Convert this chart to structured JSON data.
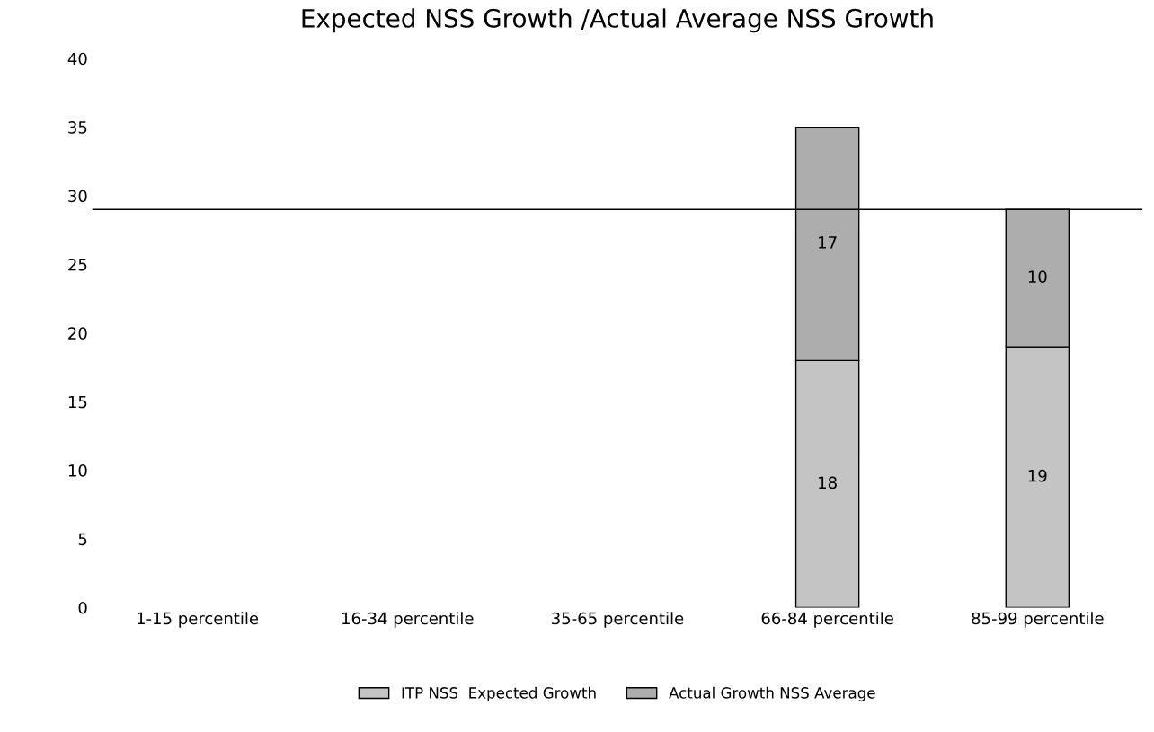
{
  "chart_data": {
    "type": "bar",
    "title": "Expected NSS Growth /Actual Average NSS Growth",
    "stacked": true,
    "categories": [
      "1-15 percentile",
      "16-34 percentile",
      "35-65 percentile",
      "66-84 percentile",
      "85-99 percentile"
    ],
    "series": [
      {
        "name": "ITP NSS  Expected Growth",
        "color": "#c4c4c4",
        "values": [
          null,
          null,
          null,
          18,
          19
        ]
      },
      {
        "name": "Actual Growth NSS Average",
        "color": "#adadad",
        "values": [
          null,
          null,
          null,
          17,
          10
        ]
      }
    ],
    "ylim": [
      0,
      40
    ],
    "yticks": [
      0,
      5,
      10,
      15,
      20,
      25,
      30,
      35,
      40
    ],
    "grid": false,
    "legend": "bottom",
    "data_labels": true,
    "ref_lines": [
      {
        "axis": "y",
        "value": 29,
        "color": "#000000"
      }
    ]
  }
}
